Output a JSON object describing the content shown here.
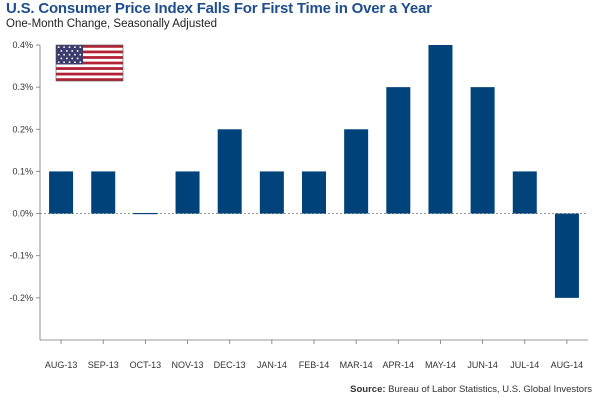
{
  "chart_data": {
    "type": "bar",
    "title": "U.S. Consumer Price Index Falls For First Time in Over a Year",
    "subtitle": "One-Month Change, Seasonally Adjusted",
    "categories": [
      "AUG-13",
      "SEP-13",
      "OCT-13",
      "NOV-13",
      "DEC-13",
      "JAN-14",
      "FEB-14",
      "MAR-14",
      "APR-14",
      "MAY-14",
      "JUN-14",
      "JUL-14",
      "AUG-14"
    ],
    "values": [
      0.1,
      0.1,
      0.0,
      0.1,
      0.2,
      0.1,
      0.1,
      0.2,
      0.3,
      0.4,
      0.3,
      0.1,
      -0.2
    ],
    "unit": "%",
    "ylim": [
      -0.3,
      0.4
    ],
    "yticks": [
      0.4,
      0.3,
      0.2,
      0.1,
      0.0,
      -0.1,
      -0.2
    ],
    "ytick_labels": [
      "0.4%",
      "0.3%",
      "0.2%",
      "0.1%",
      "0.0%",
      "-0.1%",
      "-0.2%"
    ],
    "xlabel": "",
    "ylabel": "",
    "grid": false,
    "legend": "none",
    "bar_color": "#00427a"
  },
  "source": {
    "label": "Source:",
    "text": "Bureau of Labor Statistics, U.S. Global Investors"
  },
  "flag": {
    "icon": "us-flag-icon"
  }
}
